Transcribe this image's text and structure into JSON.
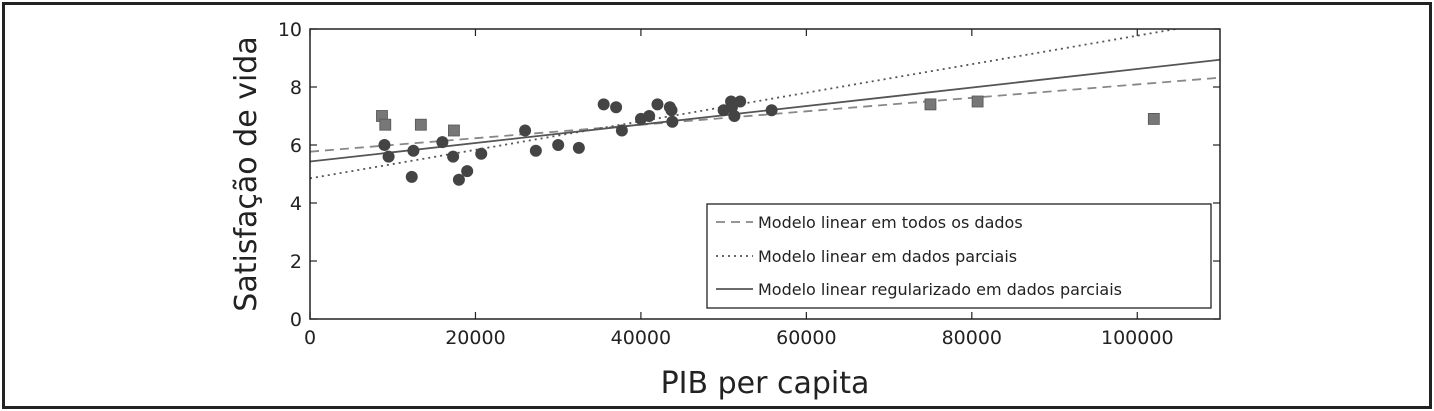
{
  "chart_data": {
    "type": "scatter",
    "title": "",
    "xlabel": "PIB per capita",
    "ylabel": "Satisfação de vida",
    "xlim": [
      0,
      110000
    ],
    "ylim": [
      0,
      10
    ],
    "xticks": [
      0,
      20000,
      40000,
      60000,
      80000,
      100000
    ],
    "yticks": [
      0,
      2,
      4,
      6,
      8,
      10
    ],
    "grid": false,
    "legend_position": "lower-right",
    "colors": {
      "circles": "#444444",
      "squares": "#777777",
      "dashed_line": "#888888",
      "dotted_line": "#555555",
      "solid_line": "#555555",
      "axis": "#222222"
    },
    "scatter_series": [
      {
        "marker": "circle",
        "points": [
          [
            9000,
            6.0
          ],
          [
            9500,
            5.6
          ],
          [
            12300,
            4.9
          ],
          [
            12500,
            5.8
          ],
          [
            16000,
            6.1
          ],
          [
            17300,
            5.6
          ],
          [
            18000,
            4.8
          ],
          [
            19000,
            5.1
          ],
          [
            20700,
            5.7
          ],
          [
            26000,
            6.5
          ],
          [
            27300,
            5.8
          ],
          [
            30000,
            6.0
          ],
          [
            32500,
            5.9
          ],
          [
            35500,
            7.4
          ],
          [
            37000,
            7.3
          ],
          [
            37700,
            6.5
          ],
          [
            40000,
            6.9
          ],
          [
            41000,
            7.0
          ],
          [
            42000,
            7.4
          ],
          [
            43500,
            7.3
          ],
          [
            43700,
            7.2
          ],
          [
            43800,
            6.8
          ],
          [
            50000,
            7.2
          ],
          [
            50900,
            7.5
          ],
          [
            51000,
            7.3
          ],
          [
            51300,
            7.0
          ],
          [
            52000,
            7.5
          ],
          [
            55800,
            7.2
          ]
        ]
      },
      {
        "marker": "square",
        "points": [
          [
            8700,
            7.0
          ],
          [
            9100,
            6.7
          ],
          [
            13400,
            6.7
          ],
          [
            17400,
            6.5
          ],
          [
            75000,
            7.4
          ],
          [
            80700,
            7.5
          ],
          [
            102000,
            6.9
          ]
        ]
      }
    ],
    "lines": [
      {
        "name": "Modelo linear em todos os dados",
        "style": "dashed",
        "intercept": 5.77,
        "slope": 2.32e-05
      },
      {
        "name": "Modelo linear em dados parciais",
        "style": "dotted",
        "intercept": 4.85,
        "slope": 4.92e-05
      },
      {
        "name": "Modelo linear regularizado em dados parciais",
        "style": "solid",
        "intercept": 5.43,
        "slope": 3.19e-05
      }
    ]
  }
}
